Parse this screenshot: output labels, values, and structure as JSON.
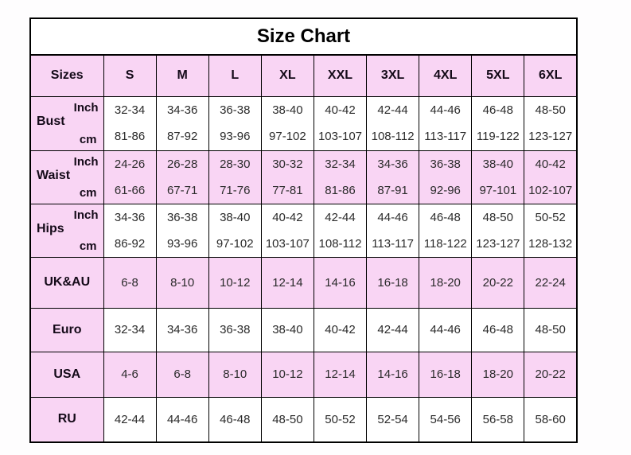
{
  "title": "Size Chart",
  "table": {
    "header": [
      "Sizes",
      "S",
      "M",
      "L",
      "XL",
      "XXL",
      "3XL",
      "4XL",
      "5XL",
      "6XL"
    ],
    "measurement_rows": [
      {
        "label": "Bust",
        "unit_top": "Inch",
        "unit_bottom": "cm",
        "shade": "white",
        "inch": [
          "32-34",
          "34-36",
          "36-38",
          "38-40",
          "40-42",
          "42-44",
          "44-46",
          "46-48",
          "48-50"
        ],
        "cm": [
          "81-86",
          "87-92",
          "93-96",
          "97-102",
          "103-107",
          "108-112",
          "113-117",
          "119-122",
          "123-127"
        ]
      },
      {
        "label": "Waist",
        "unit_top": "Inch",
        "unit_bottom": "cm",
        "shade": "pink",
        "inch": [
          "24-26",
          "26-28",
          "28-30",
          "30-32",
          "32-34",
          "34-36",
          "36-38",
          "38-40",
          "40-42"
        ],
        "cm": [
          "61-66",
          "67-71",
          "71-76",
          "77-81",
          "81-86",
          "87-91",
          "92-96",
          "97-101",
          "102-107"
        ]
      },
      {
        "label": "Hips",
        "unit_top": "Inch",
        "unit_bottom": "cm",
        "shade": "white",
        "inch": [
          "34-36",
          "36-38",
          "38-40",
          "40-42",
          "42-44",
          "44-46",
          "46-48",
          "48-50",
          "50-52"
        ],
        "cm": [
          "86-92",
          "93-96",
          "97-102",
          "103-107",
          "108-112",
          "113-117",
          "118-122",
          "123-127",
          "128-132"
        ]
      }
    ],
    "simple_rows": [
      {
        "label": "UK&AU",
        "shade": "pink",
        "values": [
          "6-8",
          "8-10",
          "10-12",
          "12-14",
          "14-16",
          "16-18",
          "18-20",
          "20-22",
          "22-24"
        ]
      },
      {
        "label": "Euro",
        "shade": "white",
        "values": [
          "32-34",
          "34-36",
          "36-38",
          "38-40",
          "40-42",
          "42-44",
          "44-46",
          "46-48",
          "48-50"
        ]
      },
      {
        "label": "USA",
        "shade": "pink",
        "values": [
          "4-6",
          "6-8",
          "8-10",
          "10-12",
          "12-14",
          "14-16",
          "16-18",
          "18-20",
          "20-22"
        ]
      },
      {
        "label": "RU",
        "shade": "white",
        "values": [
          "42-44",
          "44-46",
          "46-48",
          "48-50",
          "50-52",
          "52-54",
          "54-56",
          "56-58",
          "58-60"
        ]
      }
    ]
  },
  "colors": {
    "pink": "#F9D5F4",
    "row_white": "#FFFFFF",
    "border": "#000000",
    "label_text": "#140A18",
    "value_text": "#2B2B2B",
    "page_bg": "#FEFDFE"
  },
  "chart_data": {
    "type": "table",
    "title": "Size Chart",
    "columns": [
      "Sizes",
      "S",
      "M",
      "L",
      "XL",
      "XXL",
      "3XL",
      "4XL",
      "5XL",
      "6XL"
    ],
    "rows": [
      [
        "Bust (Inch)",
        "32-34",
        "34-36",
        "36-38",
        "38-40",
        "40-42",
        "42-44",
        "44-46",
        "46-48",
        "48-50"
      ],
      [
        "Bust (cm)",
        "81-86",
        "87-92",
        "93-96",
        "97-102",
        "103-107",
        "108-112",
        "113-117",
        "119-122",
        "123-127"
      ],
      [
        "Waist (Inch)",
        "24-26",
        "26-28",
        "28-30",
        "30-32",
        "32-34",
        "34-36",
        "36-38",
        "38-40",
        "40-42"
      ],
      [
        "Waist (cm)",
        "61-66",
        "67-71",
        "71-76",
        "77-81",
        "81-86",
        "87-91",
        "92-96",
        "97-101",
        "102-107"
      ],
      [
        "Hips (Inch)",
        "34-36",
        "36-38",
        "38-40",
        "40-42",
        "42-44",
        "44-46",
        "46-48",
        "48-50",
        "50-52"
      ],
      [
        "Hips (cm)",
        "86-92",
        "93-96",
        "97-102",
        "103-107",
        "108-112",
        "113-117",
        "118-122",
        "123-127",
        "128-132"
      ],
      [
        "UK&AU",
        "6-8",
        "8-10",
        "10-12",
        "12-14",
        "14-16",
        "16-18",
        "18-20",
        "20-22",
        "22-24"
      ],
      [
        "Euro",
        "32-34",
        "34-36",
        "36-38",
        "38-40",
        "40-42",
        "42-44",
        "44-46",
        "46-48",
        "48-50"
      ],
      [
        "USA",
        "4-6",
        "6-8",
        "8-10",
        "10-12",
        "12-14",
        "14-16",
        "16-18",
        "18-20",
        "20-22"
      ],
      [
        "RU",
        "42-44",
        "44-46",
        "46-48",
        "48-50",
        "50-52",
        "52-54",
        "54-56",
        "56-58",
        "58-60"
      ]
    ],
    "layout": {
      "grid": true,
      "header_shaded": true,
      "alternating_row_shading": true
    }
  }
}
